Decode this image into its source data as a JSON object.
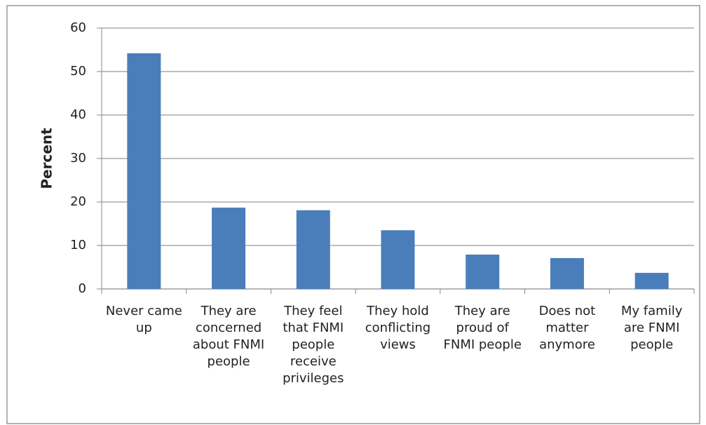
{
  "chart_data": {
    "type": "bar",
    "ylabel": "Percent",
    "categories": [
      "Never came up",
      "They are concerned about FNMI people",
      "They feel that FNMI people receive privileges",
      "They hold conflicting views",
      "They are proud of FNMI people",
      "Does not matter anymore",
      "My family are FNMI people"
    ],
    "values": [
      54.2,
      18.7,
      18.1,
      13.5,
      7.9,
      7.1,
      3.7
    ],
    "color": "#4a7ebb",
    "ylim": [
      0,
      60
    ],
    "yticks": [
      0,
      10,
      20,
      30,
      40,
      50,
      60
    ],
    "grid": true
  }
}
